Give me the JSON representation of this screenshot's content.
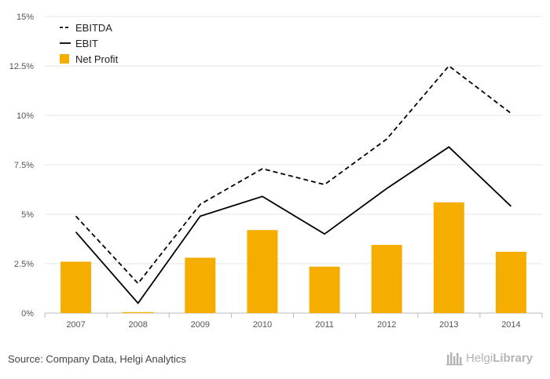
{
  "chart_data": {
    "type": "bar",
    "categories": [
      "2007",
      "2008",
      "2009",
      "2010",
      "2011",
      "2012",
      "2013",
      "2014"
    ],
    "series": [
      {
        "name": "EBITDA",
        "type": "line",
        "style": "dashed",
        "color": "#000000",
        "values": [
          4.9,
          1.5,
          5.5,
          7.3,
          6.5,
          8.8,
          12.5,
          10.1
        ]
      },
      {
        "name": "EBIT",
        "type": "line",
        "style": "solid",
        "color": "#000000",
        "values": [
          4.1,
          0.5,
          4.9,
          5.9,
          4.0,
          6.3,
          8.4,
          5.4
        ]
      },
      {
        "name": "Net Profit",
        "type": "bar",
        "color": "#f5ae00",
        "values": [
          2.6,
          0.05,
          2.8,
          4.2,
          2.35,
          3.45,
          5.6,
          3.1
        ]
      }
    ],
    "y_ticks": [
      "0%",
      "2.5%",
      "5%",
      "7.5%",
      "10%",
      "12.5%",
      "15%"
    ],
    "ylim": [
      0,
      15
    ],
    "grid": true,
    "legend_position": "top-left",
    "title": "",
    "xlabel": "",
    "ylabel": ""
  },
  "footer": {
    "source": "Source: Company Data, Helgi Analytics",
    "logo_part1": "Helgi",
    "logo_part2": "Library"
  }
}
